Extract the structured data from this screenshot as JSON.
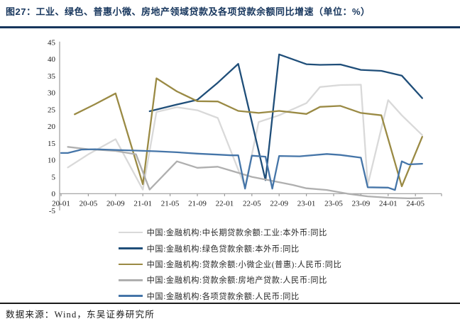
{
  "title": "图27：工业、绿色、普惠小微、房地产领域贷款及各项贷款余额同比增速（单位：%）",
  "source": "数据来源：Wind，东吴证券研究所",
  "colors": {
    "title_navy": "#17365d",
    "axis_line": "#9b9b9b",
    "axis_text": "#1a1a1a",
    "light_gray": "#d9d9d9",
    "navy": "#1f4e79",
    "olive": "#9a8a44",
    "gray": "#afafaf",
    "blue": "#4575a8"
  },
  "chart_data": {
    "type": "line",
    "title": "图27：工业、绿色、普惠小微、房地产领域贷款及各项贷款余额同比增速（单位：%）",
    "ylim": [
      -5,
      45
    ],
    "y_ticks": [
      45,
      40,
      35,
      30,
      25,
      20,
      15,
      10,
      5,
      0,
      -5
    ],
    "x_tick_labels": [
      "20-01",
      "20-05",
      "20-09",
      "21-01",
      "21-05",
      "21-09",
      "22-01",
      "22-05",
      "22-09",
      "23-01",
      "23-05",
      "23-09",
      "24-01",
      "24-05"
    ],
    "grid": false,
    "legend_position": "bottom",
    "series": [
      {
        "name": "中国:金融机构:中长期贷款余额:工业:本外币:同比",
        "color_key": "light_gray",
        "points": [
          [
            "20-02",
            7.8
          ],
          [
            "20-05",
            11.7
          ],
          [
            "20-09",
            16.2
          ],
          [
            "21-01",
            1.2
          ],
          [
            "21-03",
            24.3
          ],
          [
            "21-06",
            25.7
          ],
          [
            "21-09",
            24.8
          ],
          [
            "21-12",
            22.5
          ],
          [
            "22-04",
            2.0
          ],
          [
            "22-06",
            21.3
          ],
          [
            "22-09",
            23.3
          ],
          [
            "23-01",
            26.9
          ],
          [
            "23-03",
            31.7
          ],
          [
            "23-06",
            32.3
          ],
          [
            "23-09",
            32.4
          ],
          [
            "23-10",
            2.6
          ],
          [
            "24-01",
            27.8
          ],
          [
            "24-03",
            23.3
          ],
          [
            "24-06",
            17.4
          ]
        ]
      },
      {
        "name": "中国:金融机构:绿色贷款余额:本外币:同比",
        "color_key": "navy",
        "points": [
          [
            "21-02",
            24.5
          ],
          [
            "21-06",
            26.5
          ],
          [
            "21-09",
            27.9
          ],
          [
            "21-12",
            33.0
          ],
          [
            "22-03",
            38.6
          ],
          [
            "22-07",
            4.0
          ],
          [
            "22-09",
            41.4
          ],
          [
            "23-01",
            38.5
          ],
          [
            "23-03",
            38.3
          ],
          [
            "23-06",
            38.4
          ],
          [
            "23-09",
            36.8
          ],
          [
            "23-12",
            36.5
          ],
          [
            "24-03",
            35.1
          ],
          [
            "24-06",
            28.4
          ]
        ]
      },
      {
        "name": "中国:金融机构:贷款余额:小微企业(普惠):人民币:同比",
        "color_key": "olive",
        "points": [
          [
            "20-03",
            23.6
          ],
          [
            "20-06",
            26.6
          ],
          [
            "20-09",
            29.8
          ],
          [
            "21-01",
            2.8
          ],
          [
            "21-03",
            34.3
          ],
          [
            "21-06",
            30.4
          ],
          [
            "21-09",
            27.5
          ],
          [
            "21-12",
            27.4
          ],
          [
            "22-03",
            24.6
          ],
          [
            "22-06",
            24.0
          ],
          [
            "22-09",
            24.6
          ],
          [
            "23-01",
            23.7
          ],
          [
            "23-03",
            25.8
          ],
          [
            "23-06",
            26.1
          ],
          [
            "23-09",
            24.0
          ],
          [
            "23-12",
            23.3
          ],
          [
            "24-03",
            2.2
          ],
          [
            "24-06",
            16.9
          ]
        ]
      },
      {
        "name": "中国:金融机构:贷款余额:房地产贷款:人民币:同比",
        "color_key": "gray",
        "points": [
          [
            "20-02",
            13.9
          ],
          [
            "20-05",
            13.2
          ],
          [
            "20-09",
            12.7
          ],
          [
            "20-12",
            11.7
          ],
          [
            "21-02",
            1.2
          ],
          [
            "21-06",
            9.6
          ],
          [
            "21-09",
            7.7
          ],
          [
            "21-12",
            8.0
          ],
          [
            "22-02",
            6.8
          ],
          [
            "22-05",
            5.0
          ],
          [
            "22-08",
            3.8
          ],
          [
            "22-11",
            2.6
          ],
          [
            "23-01",
            1.6
          ],
          [
            "23-04",
            1.1
          ],
          [
            "23-07",
            0.0
          ],
          [
            "23-10",
            -0.8
          ],
          [
            "24-01",
            -1.2
          ],
          [
            "24-04",
            -1.4
          ],
          [
            "24-06",
            -1.3
          ]
        ]
      },
      {
        "name": "中国:金融机构:各项贷款余额:人民币:同比",
        "color_key": "blue",
        "points": [
          [
            "20-01",
            12.1
          ],
          [
            "20-02",
            12.1
          ],
          [
            "20-04",
            13.1
          ],
          [
            "20-06",
            13.2
          ],
          [
            "20-09",
            13.0
          ],
          [
            "20-12",
            12.8
          ],
          [
            "21-03",
            12.6
          ],
          [
            "21-06",
            12.3
          ],
          [
            "21-09",
            11.9
          ],
          [
            "21-12",
            11.6
          ],
          [
            "22-02",
            11.4
          ],
          [
            "22-03",
            11.4
          ],
          [
            "22-04",
            1.5
          ],
          [
            "22-05",
            11.3
          ],
          [
            "22-07",
            11.0
          ],
          [
            "22-08",
            1.5
          ],
          [
            "22-09",
            11.2
          ],
          [
            "22-12",
            11.1
          ],
          [
            "23-04",
            11.8
          ],
          [
            "23-06",
            11.5
          ],
          [
            "23-09",
            10.7
          ],
          [
            "23-10",
            1.9
          ],
          [
            "24-01",
            1.8
          ],
          [
            "24-02",
            1.1
          ],
          [
            "24-03",
            9.6
          ],
          [
            "24-04",
            8.7
          ],
          [
            "24-06",
            8.9
          ]
        ]
      }
    ]
  }
}
